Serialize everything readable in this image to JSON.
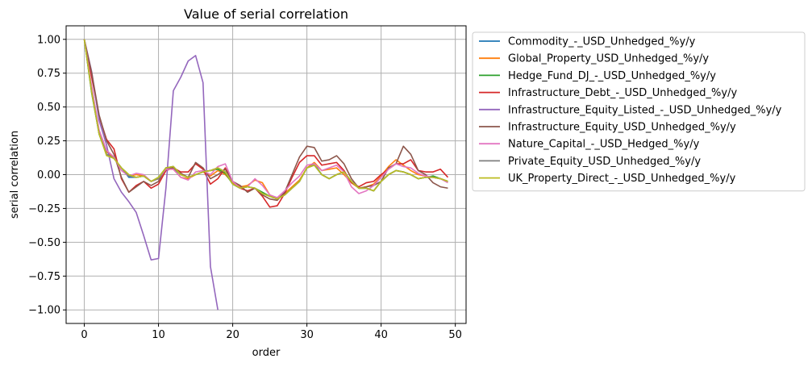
{
  "chart_data": {
    "type": "line",
    "title": "Value of serial correlation",
    "xlabel": "order",
    "ylabel": "serial correlation",
    "xlim": [
      -2.45,
      51.45
    ],
    "ylim": [
      -1.1,
      1.1
    ],
    "xticks": [
      0,
      10,
      20,
      30,
      40,
      50
    ],
    "xtick_labels": [
      "0",
      "10",
      "20",
      "30",
      "40",
      "50"
    ],
    "yticks": [
      1.0,
      0.75,
      0.5,
      0.25,
      0.0,
      -0.25,
      -0.5,
      -0.75,
      -1.0
    ],
    "ytick_labels": [
      "1.00",
      "0.75",
      "0.50",
      "0.25",
      "0.00",
      "−0.25",
      "−0.50",
      "−0.75",
      "−1.00"
    ],
    "grid": true,
    "legend_position": "outside upper right",
    "x": [
      0,
      1,
      2,
      3,
      4,
      5,
      6,
      7,
      8,
      9,
      10,
      11,
      12,
      13,
      14,
      15,
      16,
      17,
      18,
      19,
      20,
      21,
      22,
      23,
      24,
      25,
      26,
      27,
      28,
      29,
      30,
      31,
      32,
      33,
      34,
      35,
      36,
      37,
      38,
      39,
      40,
      41,
      42,
      43,
      44,
      45,
      46,
      47,
      48,
      49
    ],
    "series": [
      {
        "name": "Commodity_-_USD_Unhedged_%y/y",
        "color": "#1f77b4",
        "values": [
          1.0,
          0.62,
          0.3,
          0.15,
          0.12,
          0.05,
          -0.02,
          -0.02,
          -0.01,
          -0.05,
          -0.03,
          0.05,
          0.06,
          0.0,
          -0.02,
          0.0,
          0.02,
          0.03,
          0.05,
          0.02,
          -0.07,
          -0.1,
          -0.09,
          -0.1,
          -0.14,
          -0.16,
          -0.18,
          -0.15,
          -0.1,
          -0.05,
          0.05,
          0.08,
          0.0,
          -0.03,
          0.0,
          0.02,
          -0.05,
          -0.1,
          -0.1,
          -0.12,
          -0.05,
          0.0,
          0.03,
          0.02,
          0.0,
          -0.03,
          -0.02,
          -0.02,
          -0.03,
          -0.05
        ]
      },
      {
        "name": "Global_Property_USD_Unhedged_%y/y",
        "color": "#ff7f0e",
        "values": [
          1.0,
          0.62,
          0.32,
          0.17,
          0.12,
          0.05,
          -0.01,
          0.0,
          -0.01,
          -0.05,
          -0.03,
          0.04,
          0.04,
          -0.02,
          -0.03,
          0.0,
          0.02,
          -0.01,
          0.03,
          0.0,
          -0.06,
          -0.09,
          -0.08,
          -0.04,
          -0.06,
          -0.15,
          -0.18,
          -0.14,
          -0.09,
          -0.04,
          0.05,
          0.09,
          0.03,
          0.04,
          0.05,
          0.0,
          -0.06,
          -0.1,
          -0.09,
          -0.07,
          -0.01,
          0.06,
          0.11,
          0.07,
          0.03,
          0.0,
          -0.01,
          -0.02,
          -0.03,
          -0.05
        ]
      },
      {
        "name": "Hedge_Fund_DJ_-_USD_Unhedged_%y/y",
        "color": "#2ca02c",
        "values": [
          1.0,
          0.6,
          0.3,
          0.15,
          0.12,
          0.05,
          0.0,
          -0.02,
          -0.01,
          -0.05,
          -0.02,
          0.05,
          0.05,
          0.0,
          -0.02,
          0.0,
          0.02,
          0.03,
          0.04,
          0.01,
          -0.07,
          -0.1,
          -0.09,
          -0.1,
          -0.13,
          -0.16,
          -0.18,
          -0.15,
          -0.1,
          -0.05,
          0.05,
          0.07,
          0.0,
          -0.03,
          0.0,
          0.02,
          -0.05,
          -0.1,
          -0.1,
          -0.12,
          -0.05,
          0.0,
          0.03,
          0.02,
          0.0,
          -0.03,
          -0.02,
          -0.01,
          -0.03,
          -0.05
        ]
      },
      {
        "name": "Infrastructure_Debt_-_USD_Unhedged_%y/y",
        "color": "#d62728",
        "values": [
          1.0,
          0.72,
          0.43,
          0.26,
          0.19,
          -0.03,
          -0.13,
          -0.08,
          -0.05,
          -0.1,
          -0.07,
          0.03,
          0.05,
          0.02,
          0.02,
          0.08,
          0.04,
          -0.07,
          -0.03,
          0.05,
          -0.05,
          -0.1,
          -0.12,
          -0.1,
          -0.16,
          -0.24,
          -0.23,
          -0.14,
          -0.02,
          0.09,
          0.14,
          0.14,
          0.07,
          0.08,
          0.09,
          0.03,
          -0.06,
          -0.09,
          -0.06,
          -0.05,
          0.0,
          0.04,
          0.08,
          0.08,
          0.11,
          0.03,
          0.02,
          0.02,
          0.04,
          -0.02
        ]
      },
      {
        "name": "Infrastructure_Equity_Listed_-_USD_Unhedged_%y/y",
        "color": "#9467bd",
        "values": [
          1.0,
          0.76,
          0.4,
          0.22,
          -0.03,
          -0.13,
          -0.2,
          -0.28,
          -0.45,
          -0.63,
          -0.62,
          -0.1,
          0.62,
          0.72,
          0.84,
          0.88,
          0.68,
          -0.68,
          -1.0,
          null,
          null,
          null,
          null,
          null,
          null,
          null,
          null,
          null,
          null,
          null,
          null,
          null,
          null,
          null,
          null,
          null,
          null,
          null,
          null,
          null,
          null,
          null,
          null,
          null,
          null,
          null,
          null,
          null,
          null,
          null
        ]
      },
      {
        "name": "Infrastructure_Equity_USD_Unhedged_%y/y",
        "color": "#8c564b",
        "values": [
          1.0,
          0.75,
          0.44,
          0.25,
          0.15,
          -0.02,
          -0.13,
          -0.09,
          -0.05,
          -0.08,
          -0.05,
          0.05,
          0.05,
          0.01,
          -0.02,
          0.09,
          0.05,
          -0.03,
          0.0,
          0.04,
          -0.05,
          -0.08,
          -0.13,
          -0.1,
          -0.15,
          -0.18,
          -0.19,
          -0.13,
          0.0,
          0.13,
          0.21,
          0.2,
          0.1,
          0.11,
          0.14,
          0.08,
          -0.03,
          -0.1,
          -0.09,
          -0.08,
          -0.05,
          0.05,
          0.08,
          0.21,
          0.15,
          0.03,
          0.0,
          -0.06,
          -0.09,
          -0.1
        ]
      },
      {
        "name": "Nature_Capital_-_USD_Hedged_%y/y",
        "color": "#e377c2",
        "values": [
          1.0,
          0.65,
          0.33,
          0.18,
          0.13,
          0.03,
          -0.01,
          0.01,
          0.0,
          -0.05,
          -0.03,
          0.04,
          0.04,
          -0.02,
          -0.04,
          0.02,
          0.03,
          0.0,
          0.06,
          0.08,
          -0.05,
          -0.1,
          -0.09,
          -0.03,
          -0.08,
          -0.15,
          -0.17,
          -0.12,
          -0.06,
          -0.01,
          0.07,
          0.08,
          0.03,
          0.05,
          0.07,
          0.02,
          -0.09,
          -0.14,
          -0.12,
          -0.08,
          -0.02,
          0.04,
          0.08,
          0.06,
          0.05,
          0.01,
          -0.01,
          -0.02,
          -0.03,
          -0.06
        ]
      },
      {
        "name": "Private_Equity_USD_Unhedged_%y/y",
        "color": "#7f7f7f",
        "values": [
          1.0,
          0.61,
          0.3,
          0.15,
          0.12,
          0.05,
          -0.01,
          -0.02,
          -0.01,
          -0.05,
          -0.03,
          0.05,
          0.06,
          0.0,
          -0.02,
          0.0,
          0.02,
          0.03,
          0.05,
          0.02,
          -0.07,
          -0.1,
          -0.09,
          -0.1,
          -0.14,
          -0.16,
          -0.18,
          -0.15,
          -0.1,
          -0.05,
          0.05,
          0.07,
          0.0,
          -0.03,
          0.0,
          0.02,
          -0.05,
          -0.1,
          -0.1,
          -0.12,
          -0.05,
          0.0,
          0.03,
          0.02,
          0.0,
          -0.03,
          -0.02,
          -0.02,
          -0.03,
          -0.05
        ]
      },
      {
        "name": "UK_Property_Direct_-_USD_Unhedged_%y/y",
        "color": "#bcbd22",
        "values": [
          1.0,
          0.61,
          0.3,
          0.14,
          0.12,
          0.05,
          0.0,
          -0.02,
          -0.01,
          -0.05,
          -0.02,
          0.05,
          0.06,
          0.0,
          -0.02,
          0.0,
          0.02,
          0.03,
          0.05,
          0.02,
          -0.07,
          -0.1,
          -0.09,
          -0.1,
          -0.14,
          -0.16,
          -0.18,
          -0.15,
          -0.1,
          -0.05,
          0.05,
          0.07,
          0.0,
          -0.03,
          0.0,
          0.02,
          -0.05,
          -0.1,
          -0.1,
          -0.12,
          -0.05,
          0.0,
          0.03,
          0.02,
          0.0,
          -0.03,
          -0.02,
          -0.02,
          -0.03,
          -0.05
        ]
      }
    ]
  }
}
